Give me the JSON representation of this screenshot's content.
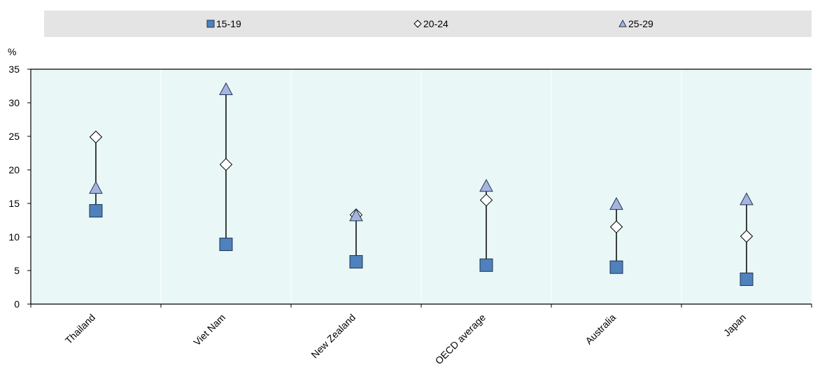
{
  "chart_data": {
    "type": "scatter",
    "title": "",
    "xlabel": "",
    "ylabel": "%",
    "ylim": [
      0,
      35
    ],
    "yticks": [
      0,
      5,
      10,
      15,
      20,
      25,
      30,
      35
    ],
    "categories": [
      "Thailand",
      "Viet Nam",
      "New Zealand",
      "OECD average",
      "Australia",
      "Japan"
    ],
    "series": [
      {
        "name": "15-19",
        "marker": "square",
        "color": "#4f81bd",
        "values": [
          13.9,
          8.9,
          6.3,
          5.8,
          5.5,
          3.7
        ]
      },
      {
        "name": "20-24",
        "marker": "diamond",
        "color": "#ffffff",
        "values": [
          24.9,
          20.8,
          13.3,
          15.5,
          11.5,
          10.1
        ]
      },
      {
        "name": "25-29",
        "marker": "triangle",
        "color": "#a6b5de",
        "values": [
          17.3,
          32.0,
          13.2,
          17.6,
          14.9,
          15.6
        ]
      }
    ],
    "grid": "vertical",
    "legend_position": "top",
    "colors": {
      "plot_background": "#eaf7f7",
      "legend_background": "#e4e4e4",
      "grid": "#ffffff",
      "axis": "#000000"
    }
  }
}
